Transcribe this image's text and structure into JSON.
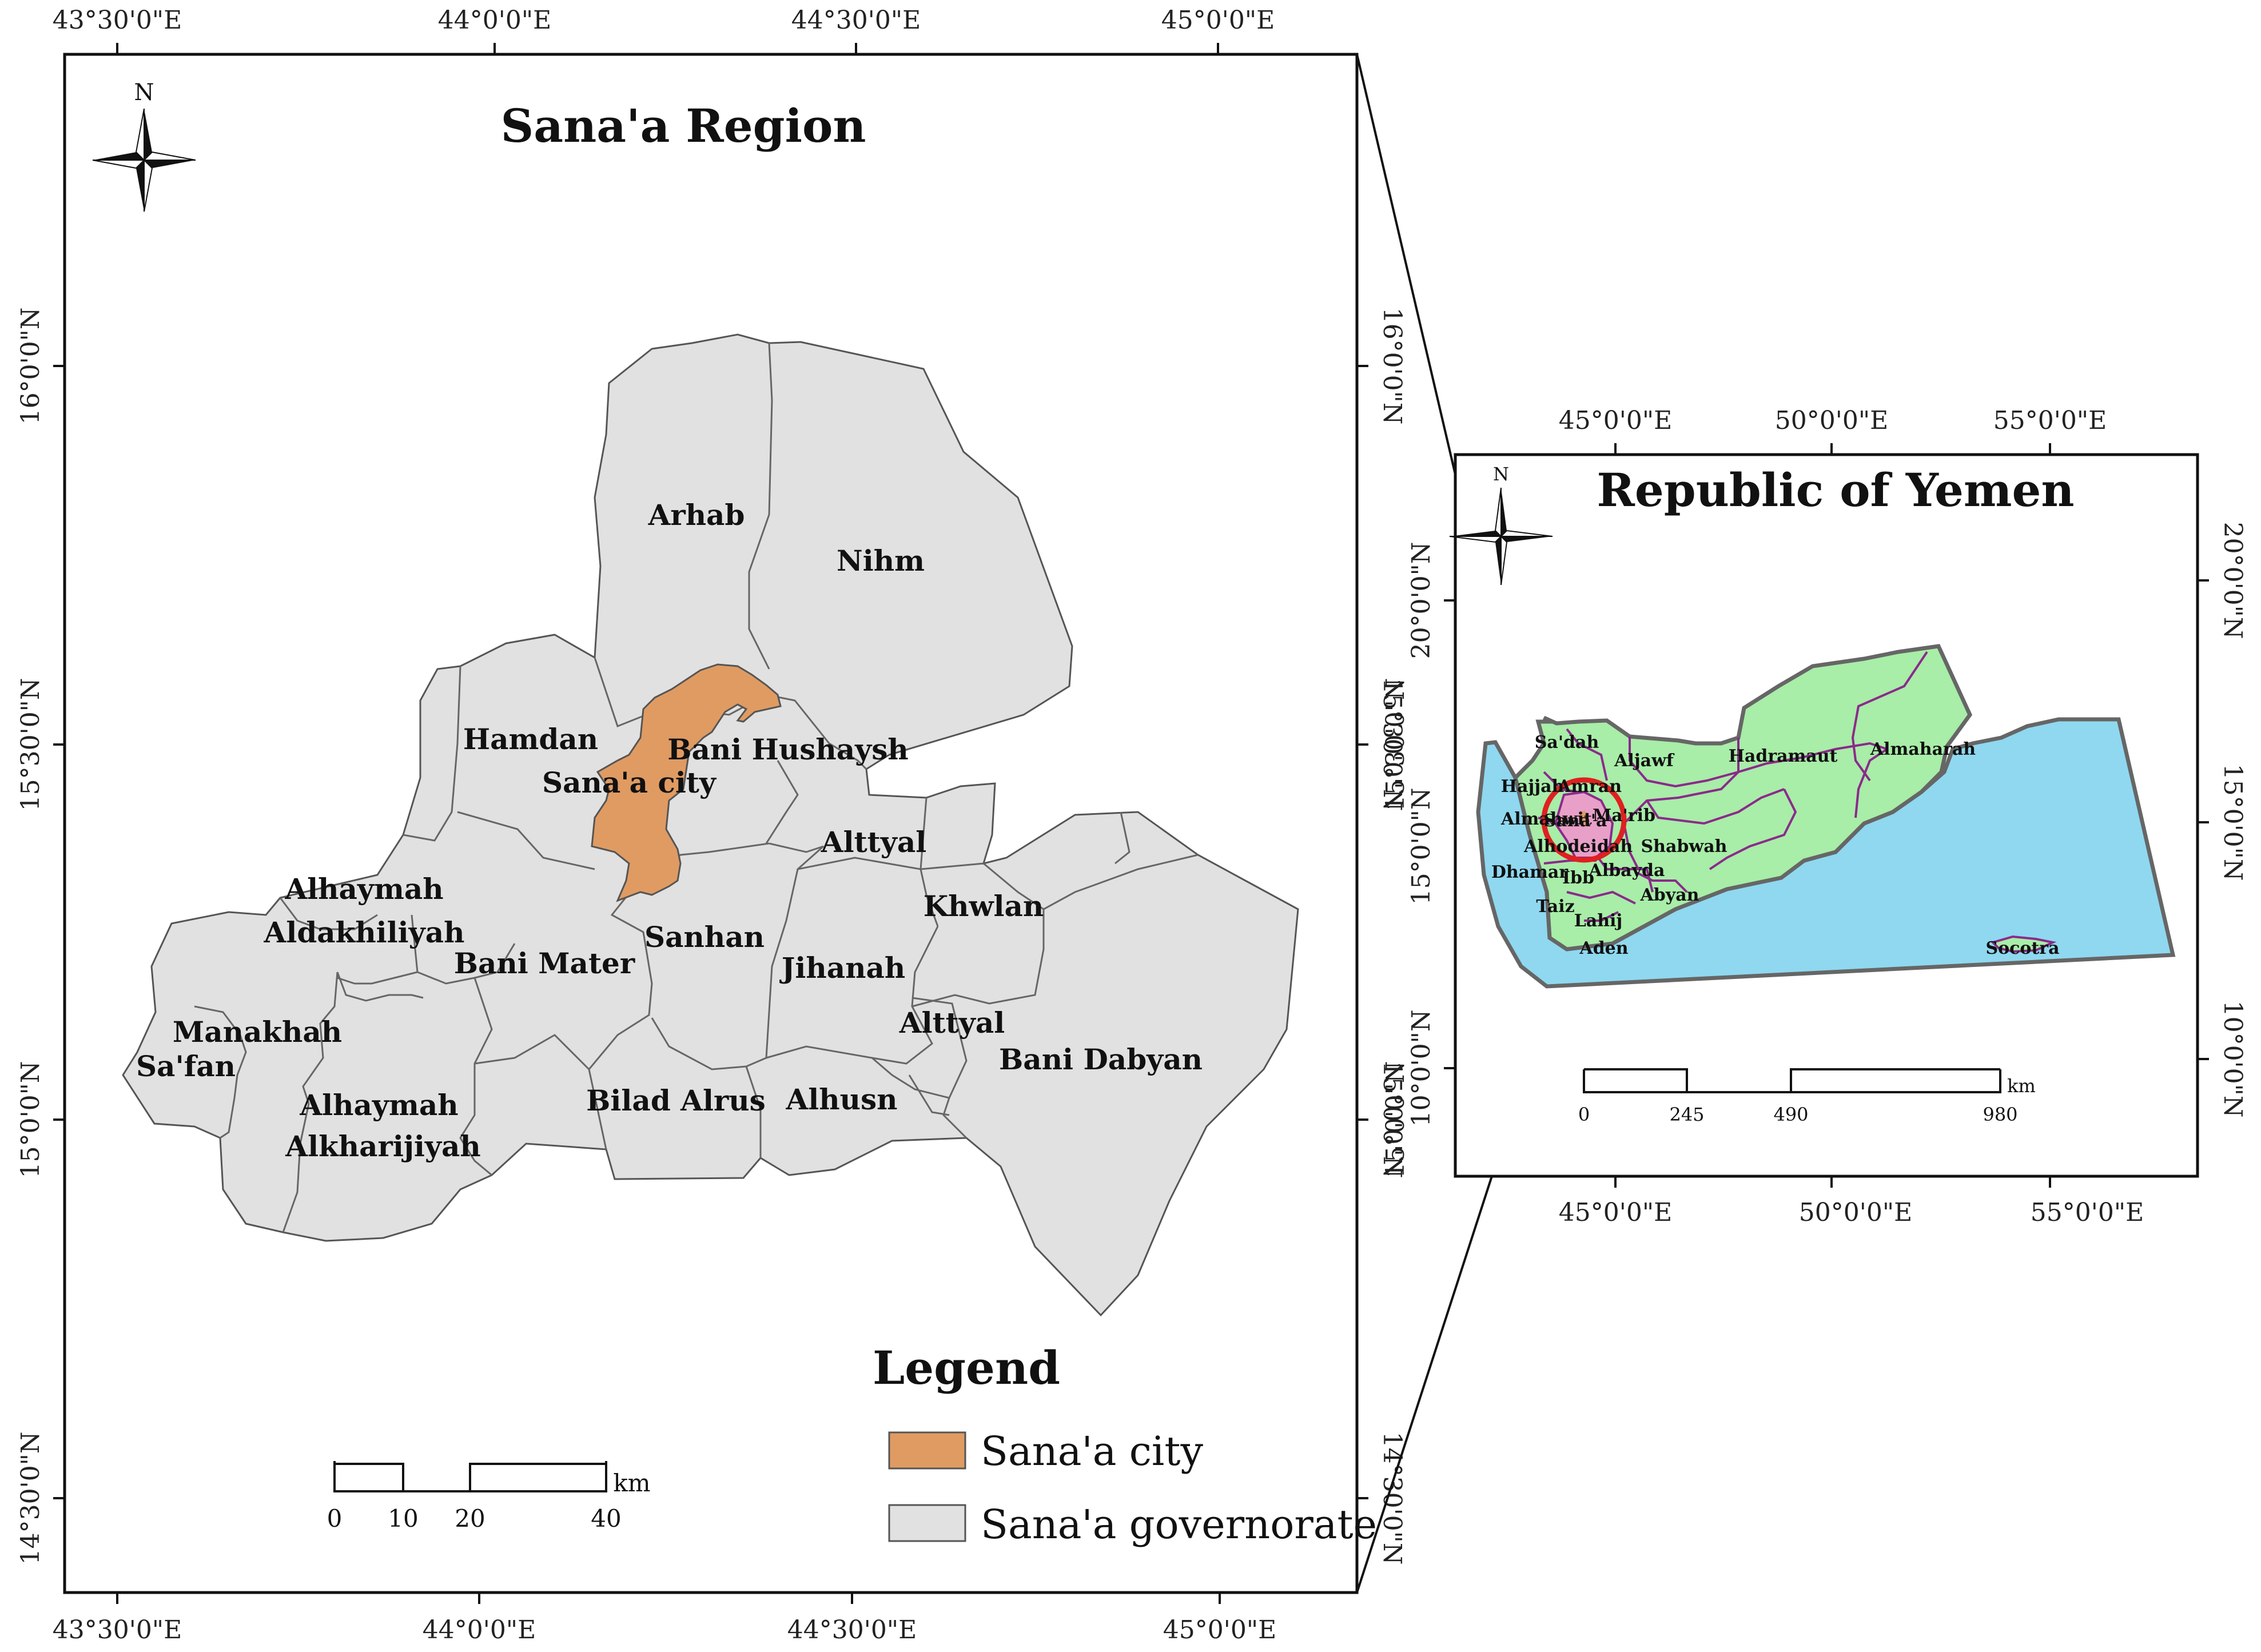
{
  "main_map": {
    "title": "Sana'a Region",
    "top_lon_labels": [
      "43°30'0\"E",
      "44°0'0\"E",
      "44°30'0\"E",
      "45°0'0\"E"
    ],
    "bottom_lon_labels": [
      "43°30'0\"E",
      "44°0'0\"E",
      "44°30'0\"E",
      "45°0'0\"E"
    ],
    "left_lat_labels": [
      "16°0'0\"N",
      "15°30'0\"N",
      "15°0'0\"N",
      "14°30'0\"N"
    ],
    "right_lat_labels": [
      "16°0'0\"N",
      "15°30'0\"N",
      "15°0'0\"N",
      "14°30'0\"N"
    ],
    "north_label": "N",
    "districts": {
      "arhab": "Arhab",
      "nihm": "Nihm",
      "hamdan": "Hamdan",
      "bani_hushaysh": "Bani Hushaysh",
      "sanaa_city": "Sana'a city",
      "alttyal_n": "Alttyal",
      "alhaymah_d1": "Alhaymah",
      "alhaymah_d2": "Aldakhiliyah",
      "khwlan": "Khwlan",
      "bani_mater": "Bani Mater",
      "sanhan": "Sanhan",
      "jihanah": "Jihanah",
      "manakhah": "Manakhah",
      "alttyal_s": "Alttyal",
      "safan": "Sa'fan",
      "bani_dabyan": "Bani Dabyan",
      "alhaymah_k1": "Alhaymah",
      "alhaymah_k2": "Alkharijiyah",
      "bilad_alrus": "Bilad Alrus",
      "alhusn": "Alhusn"
    },
    "scale": {
      "labels": [
        "0",
        "10",
        "20",
        "40"
      ],
      "unit": "km"
    },
    "colors": {
      "city": "#E09B62",
      "governorate": "#E1E1E1",
      "border": "#444444"
    }
  },
  "legend": {
    "title": "Legend",
    "items": [
      {
        "label": "Sana'a city",
        "color": "#E09B62"
      },
      {
        "label": "Sana'a governorate",
        "color": "#E1E1E1"
      }
    ]
  },
  "inset_map": {
    "title": "Republic of Yemen",
    "top_lon_labels": [
      "45°0'0\"E",
      "50°0'0\"E",
      "55°0'0\"E"
    ],
    "bottom_lon_labels": [
      "45°0'0\"E",
      "50°0'0\"E",
      "55°0'0\"E"
    ],
    "left_lat_labels": [
      "20°0'0\"N",
      "15°30'0\"N",
      "15°0'0\"N",
      "10°0'0\"N",
      "15°0'0\"N"
    ],
    "right_lat_labels": [
      "20°0'0\"N",
      "15°0'0\"N",
      "10°0'0\"N"
    ],
    "north_label": "N",
    "governorates": {
      "sadah": "Sa'dah",
      "aljawf": "Aljawf",
      "hadramaut": "Hadramaut",
      "almaharah": "Almaharah",
      "hajjah": "Hajjah",
      "amran": "Amran",
      "almahwit": "Almahwit",
      "sanaa": "Sana'a",
      "marib": "Ma'rib",
      "alhodeidah": "Alhodeidah",
      "shabwah": "Shabwah",
      "dhamar": "Dhamar",
      "albayda": "Albayda",
      "ibb": "Ibb",
      "abyan": "Abyan",
      "taiz": "Taiz",
      "lahij": "Lahij",
      "aden": "Aden",
      "socotra": "Socotra"
    },
    "scale": {
      "labels": [
        "0",
        "245",
        "490",
        "980"
      ],
      "unit": "km"
    },
    "colors": {
      "land": "#A8EDA8",
      "sea": "#8FD8F0",
      "highlight": "#E8A0C8",
      "circle": "#E02020",
      "boundary": "#8B2A8B"
    }
  }
}
